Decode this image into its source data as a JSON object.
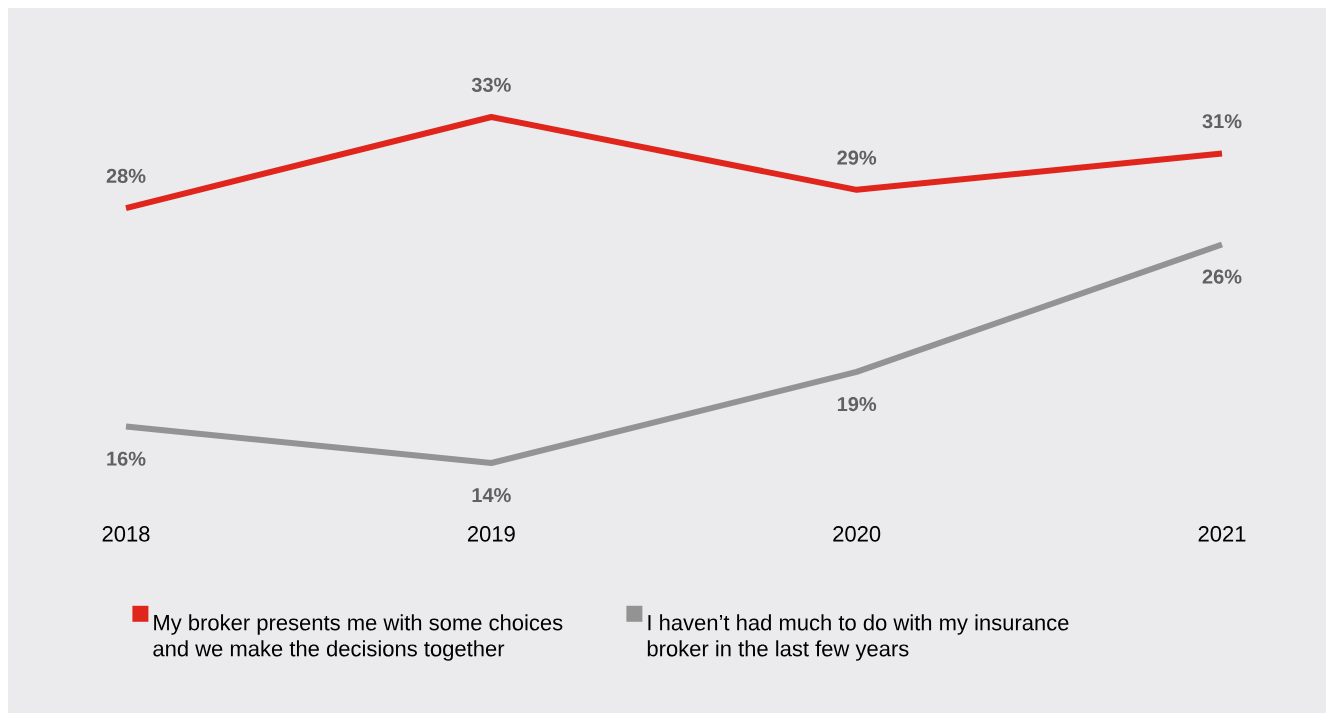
{
  "chart_data": {
    "type": "line",
    "categories": [
      "2018",
      "2019",
      "2020",
      "2021"
    ],
    "series": [
      {
        "name": "My broker presents me with some choices and we make the decisions together",
        "color": "#e0261c",
        "values": [
          28,
          33,
          29,
          31
        ],
        "value_labels": [
          "28%",
          "33%",
          "29%",
          "31%"
        ]
      },
      {
        "name": "I haven’t had much to do with my insurance broker in the last few years",
        "color": "#939393",
        "values": [
          16,
          14,
          19,
          26
        ],
        "value_labels": [
          "16%",
          "14%",
          "19%",
          "26%"
        ]
      }
    ],
    "legend": "bottom left",
    "marker": "none",
    "line_style": "solid",
    "grid": false
  }
}
